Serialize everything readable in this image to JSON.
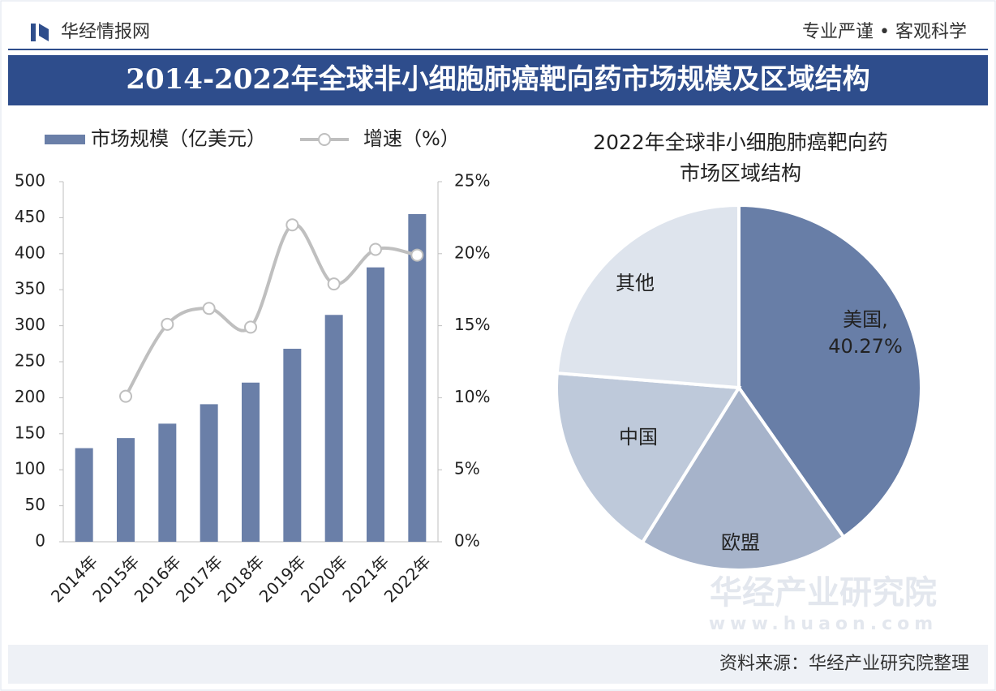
{
  "header": {
    "brand": "华经情报网",
    "slogan": "专业严谨 • 客观科学",
    "title": "2014-2022年全球非小细胞肺癌靶向药市场规模及区域结构"
  },
  "footer": "资料来源：华经产业研究院整理",
  "watermark": {
    "name": "华经产业研究院",
    "url": "www.huaon.com"
  },
  "chart_data": [
    {
      "type": "bar",
      "categories": [
        "2014年",
        "2015年",
        "2016年",
        "2017年",
        "2018年",
        "2019年",
        "2020年",
        "2021年",
        "2022年"
      ],
      "series": [
        {
          "name": "市场规模（亿美元）",
          "type": "bar",
          "color": "#6a7fa8",
          "values": [
            130,
            144,
            164,
            191,
            221,
            268,
            315,
            381,
            455
          ]
        },
        {
          "name": "增速（%）",
          "type": "line",
          "axis": "y2",
          "color": "#bfbfbf",
          "values": [
            null,
            10.1,
            15.1,
            16.2,
            14.9,
            22.0,
            17.9,
            20.3,
            19.9
          ]
        }
      ],
      "ylim": [
        0,
        500
      ],
      "yticks": [
        0,
        50,
        100,
        150,
        200,
        250,
        300,
        350,
        400,
        450,
        500
      ],
      "y2lim": [
        0,
        25
      ],
      "y2ticks": [
        {
          "value": 0,
          "label": "0%"
        },
        {
          "value": 5,
          "label": "5%"
        },
        {
          "value": 10,
          "label": "10%"
        },
        {
          "value": 15,
          "label": "15%"
        },
        {
          "value": 20,
          "label": "20%"
        },
        {
          "value": 25,
          "label": "25%"
        }
      ],
      "legend": "top",
      "grid": false
    },
    {
      "type": "pie",
      "title": [
        "2022年全球非小细胞肺癌靶向药",
        "市场区域结构"
      ],
      "categories": [
        "美国,",
        "欧盟",
        "中国",
        "其他"
      ],
      "values": [
        40.27,
        18.6,
        17.4,
        23.73
      ],
      "value_labels": [
        "40.27%",
        null,
        null,
        null
      ],
      "colors": [
        "#687ea7",
        "#a6b3ca",
        "#bec9da",
        "#dee4ed"
      ]
    }
  ]
}
